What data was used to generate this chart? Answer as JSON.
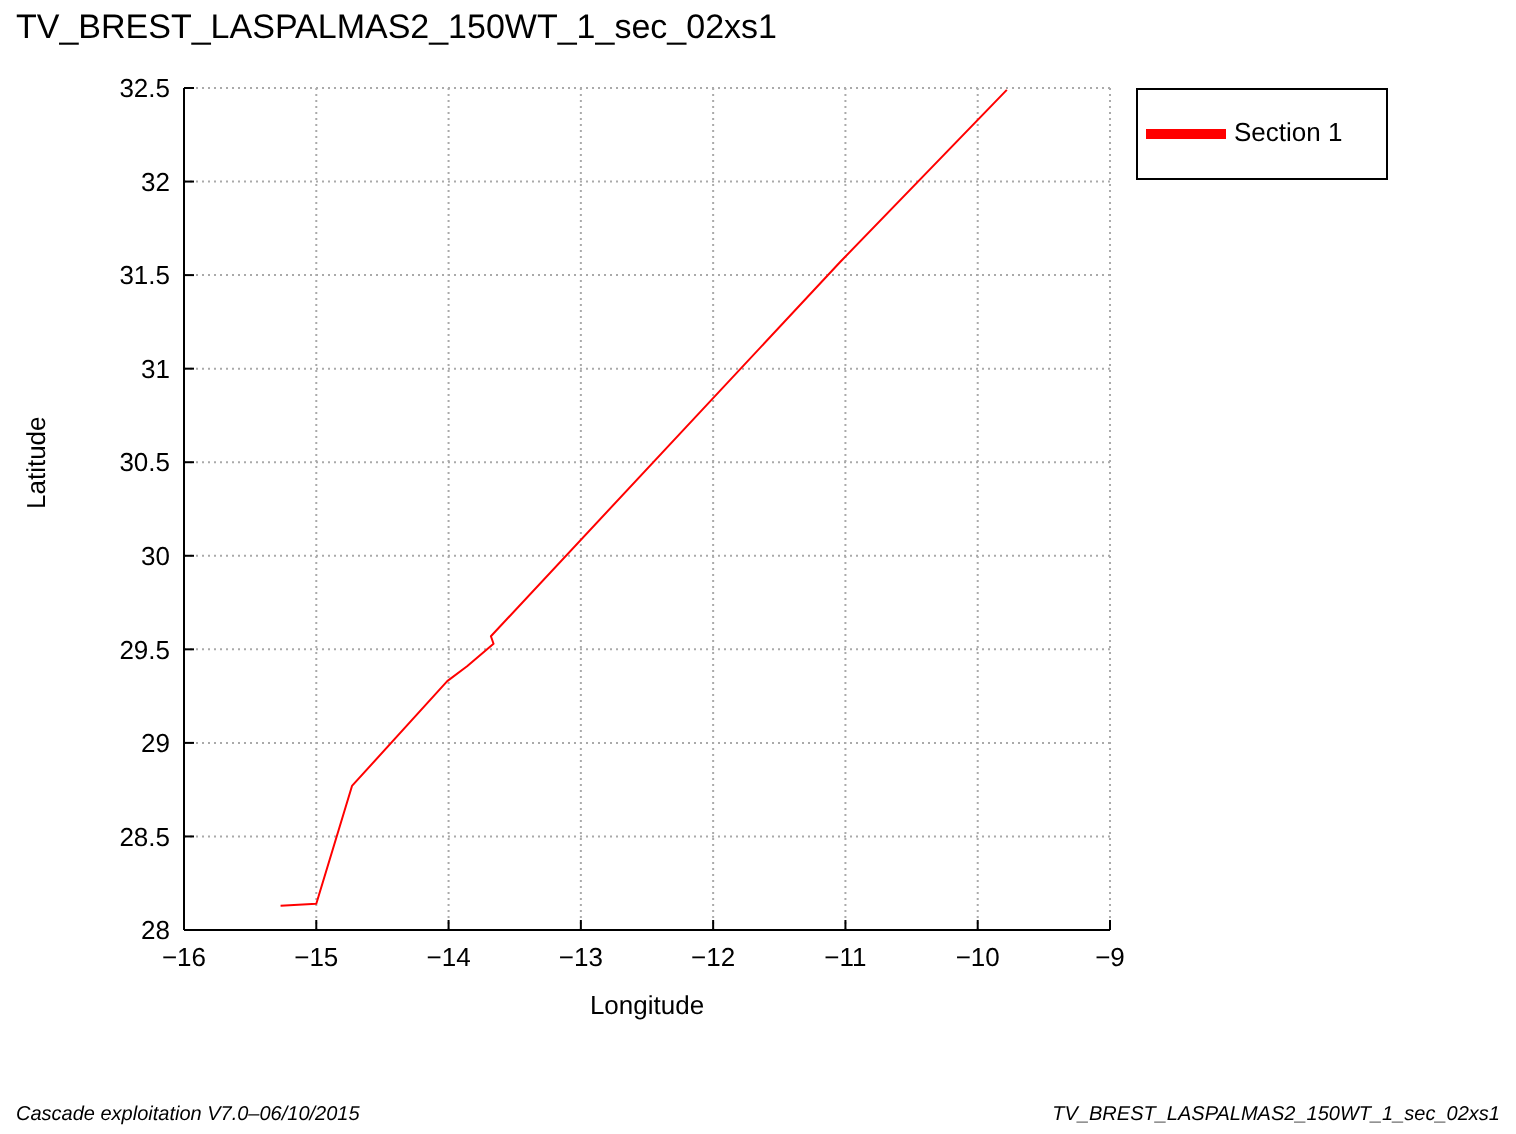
{
  "chart_data": {
    "type": "line",
    "title": "TV_BREST_LASPALMAS2_150WT_1_sec_02xs1",
    "xlabel": "Longitude",
    "ylabel": "Latitude",
    "x": [
      -15.27,
      -15.0,
      -14.73,
      -14.01,
      -13.86,
      -13.66,
      -13.68,
      -11.04,
      -9.78
    ],
    "series": [
      {
        "name": "Section 1",
        "color": "#ff0000",
        "values": [
          28.13,
          28.14,
          28.77,
          29.33,
          29.41,
          29.53,
          29.57,
          31.57,
          32.49
        ]
      }
    ],
    "xlim": [
      -16,
      -9
    ],
    "xticks": [
      -16,
      -15,
      -14,
      -13,
      -12,
      -11,
      -10,
      -9
    ],
    "ylim": [
      28,
      32.5
    ],
    "yticks": [
      28,
      28.5,
      29,
      29.5,
      30,
      30.5,
      31,
      31.5,
      32,
      32.5
    ],
    "grid": true,
    "legend": "top right",
    "marker": "none",
    "line_style": "solid",
    "annotations": [
      "Cascade exploitation V7.0–06/10/2015",
      "TV_BREST_LASPALMAS2_150WT_1_sec_02xs1"
    ]
  }
}
